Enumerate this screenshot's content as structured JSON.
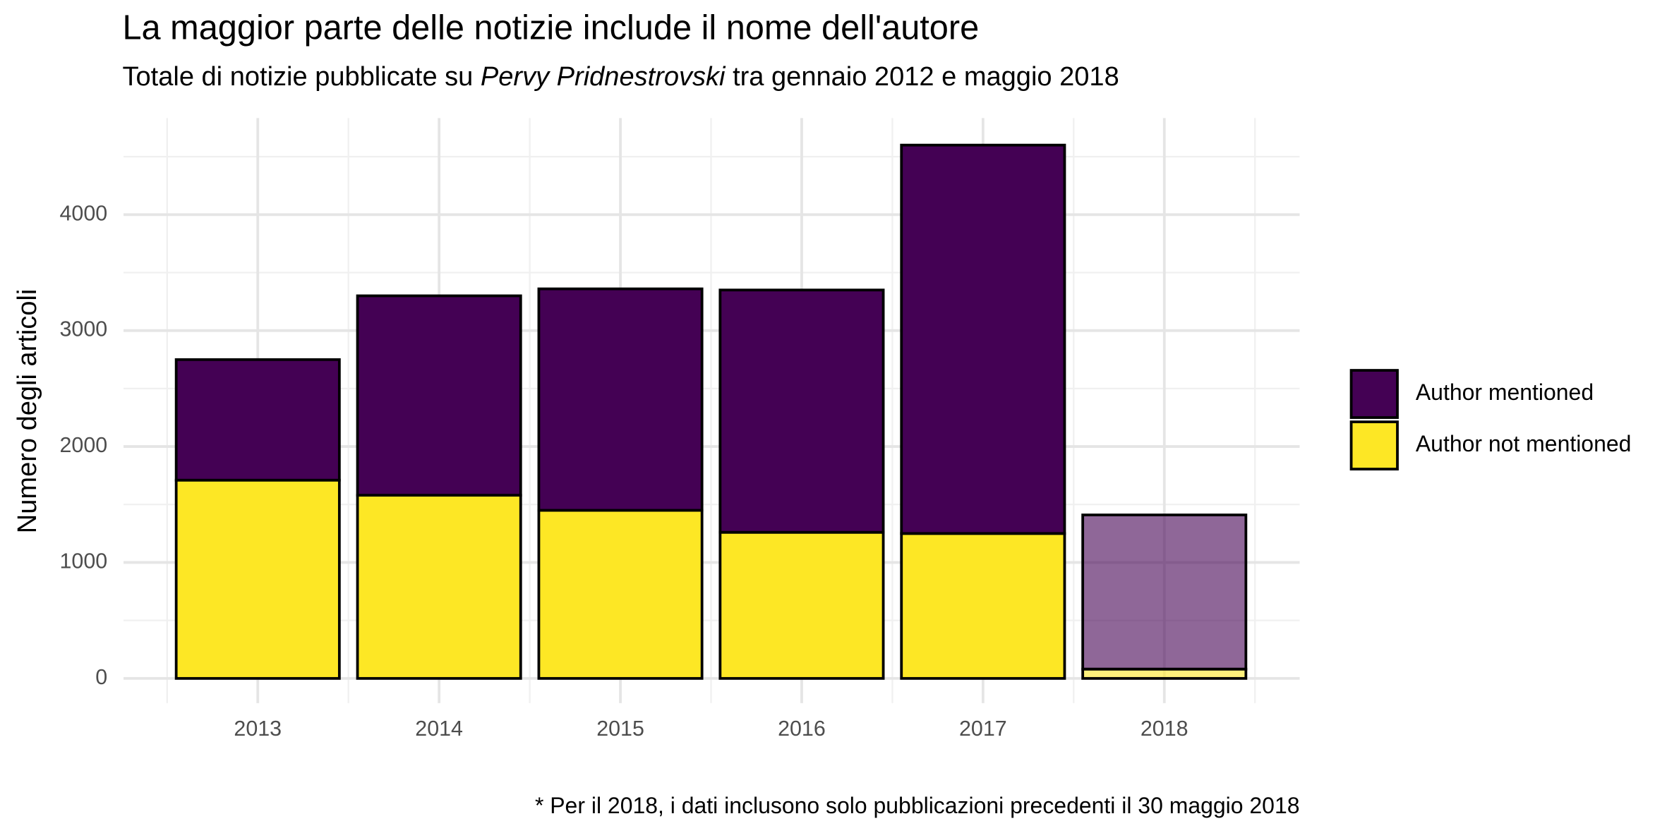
{
  "chart_data": {
    "type": "stacked_bar",
    "title": "La maggior parte delle notizie include il nome dell'autore",
    "subtitle": {
      "before": "Totale di notizie pubblicate su ",
      "italic": "Pervy Pridnestrovski",
      "after": " tra gennaio 2012 e maggio 2018"
    },
    "y_label": "Numero degli articoli",
    "caption": "* Per il 2018, i dati inclusono solo pubblicazioni precedenti il 30 maggio 2018",
    "categories": [
      "2013",
      "2014",
      "2015",
      "2016",
      "2017",
      "2018"
    ],
    "opacity": [
      1,
      1,
      1,
      1,
      1,
      0.6
    ],
    "series": [
      {
        "name": "Author mentioned",
        "color": "#440154",
        "values": [
          1040,
          1720,
          1910,
          2090,
          3350,
          1330
        ]
      },
      {
        "name": "Author not mentioned",
        "color": "#fde725",
        "values": [
          1710,
          1580,
          1450,
          1260,
          1250,
          80
        ]
      }
    ],
    "stack_from_last": true,
    "ylim": [
      -213,
      4833
    ],
    "yticks": [
      0,
      1000,
      2000,
      3000,
      4000
    ],
    "minor_yticks": [
      500,
      1500,
      2500,
      3500,
      4500
    ],
    "grid": true,
    "legend": "right"
  }
}
